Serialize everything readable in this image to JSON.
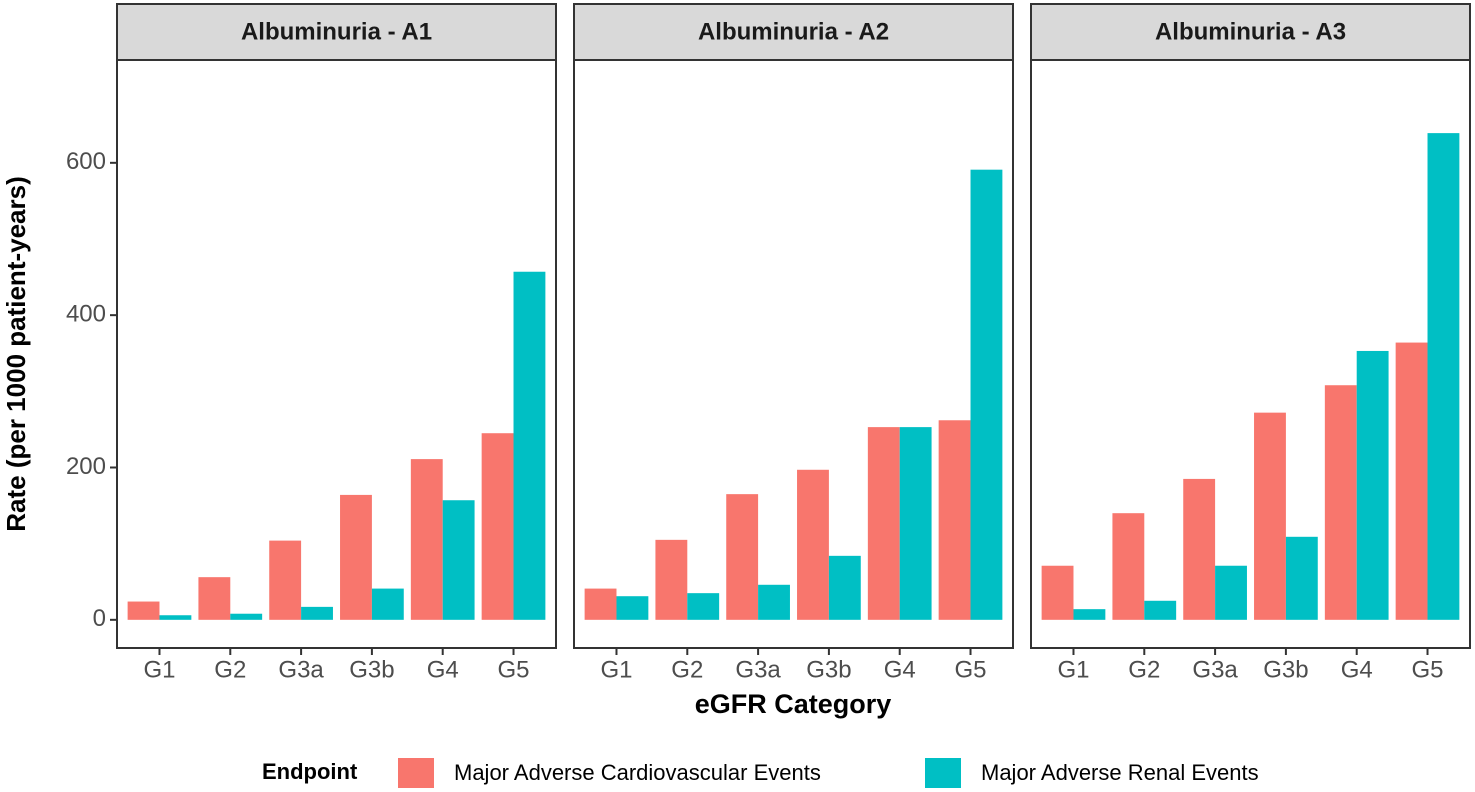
{
  "chart_data": {
    "type": "bar",
    "y_label": "Rate (per 1000 patient-years)",
    "x_label": "eGFR Category",
    "ylim": [
      -37,
      735
    ],
    "yticks": [
      0,
      200,
      400,
      600
    ],
    "legend": {
      "title": "Endpoint",
      "series": [
        {
          "name": "Major Adverse Cardiovascular Events",
          "color": "#f8766d"
        },
        {
          "name": "Major Adverse Renal Events",
          "color": "#00bfc4"
        }
      ]
    },
    "facets": [
      {
        "title": "Albuminuria - A1",
        "categories": [
          "G1",
          "G2",
          "G3a",
          "G3b",
          "G4",
          "G5"
        ],
        "series": [
          {
            "values": [
              24,
              56,
              104,
              164,
              211,
              245
            ]
          },
          {
            "values": [
              6,
              8,
              17,
              41,
              157,
              457
            ]
          }
        ]
      },
      {
        "title": "Albuminuria - A2",
        "categories": [
          "G1",
          "G2",
          "G3a",
          "G3b",
          "G4",
          "G5"
        ],
        "series": [
          {
            "values": [
              41,
              105,
              165,
              197,
              253,
              262
            ]
          },
          {
            "values": [
              31,
              35,
              46,
              84,
              253,
              591
            ]
          }
        ]
      },
      {
        "title": "Albuminuria - A3",
        "categories": [
          "G1",
          "G2",
          "G3a",
          "G3b",
          "G4",
          "G5"
        ],
        "series": [
          {
            "values": [
              71,
              140,
              185,
              272,
              308,
              364
            ]
          },
          {
            "values": [
              14,
              25,
              71,
              109,
              353,
              639
            ]
          }
        ]
      }
    ]
  }
}
